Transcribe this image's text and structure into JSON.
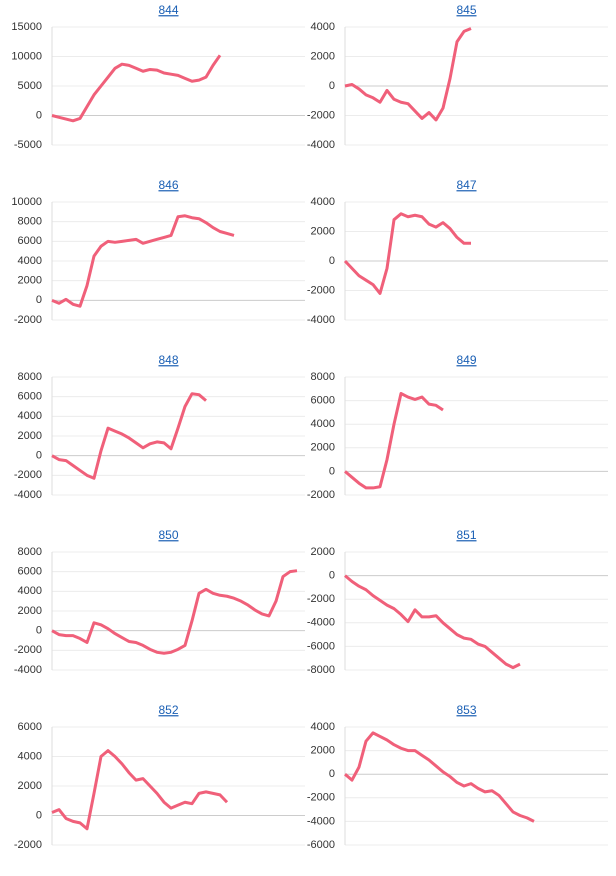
{
  "chart_data": [
    {
      "type": "line",
      "title": "844",
      "ylim": [
        -5000,
        15000
      ],
      "yticks": [
        -5000,
        0,
        5000,
        10000,
        15000
      ],
      "grid": true,
      "series": [
        {
          "color": "#f0607a",
          "values": [
            0,
            -300,
            -600,
            -900,
            -500,
            1500,
            3500,
            5000,
            6500,
            8000,
            8700,
            8500,
            8000,
            7500,
            7800,
            7700,
            7200,
            7000,
            6800,
            6300,
            5800,
            6000,
            6500,
            8500,
            10200
          ]
        }
      ]
    },
    {
      "type": "line",
      "title": "845",
      "ylim": [
        -4000,
        4000
      ],
      "yticks": [
        -4000,
        -2000,
        0,
        2000,
        4000
      ],
      "grid": true,
      "series": [
        {
          "color": "#f0607a",
          "values": [
            0,
            100,
            -200,
            -600,
            -800,
            -1100,
            -300,
            -900,
            -1100,
            -1200,
            -1700,
            -2200,
            -1800,
            -2300,
            -1500,
            500,
            3000,
            3700,
            3900
          ]
        }
      ]
    },
    {
      "type": "line",
      "title": "846",
      "ylim": [
        -2000,
        10000
      ],
      "yticks": [
        -2000,
        0,
        2000,
        4000,
        6000,
        8000,
        10000
      ],
      "grid": true,
      "series": [
        {
          "color": "#f0607a",
          "values": [
            0,
            -300,
            100,
            -400,
            -600,
            1500,
            4500,
            5500,
            6000,
            5900,
            6000,
            6100,
            6200,
            5800,
            6000,
            6200,
            6400,
            6600,
            8500,
            8600,
            8400,
            8300,
            7900,
            7400,
            7000,
            6800,
            6600
          ]
        }
      ]
    },
    {
      "type": "line",
      "title": "847",
      "ylim": [
        -4000,
        4000
      ],
      "yticks": [
        -4000,
        -2000,
        0,
        2000,
        4000
      ],
      "grid": true,
      "series": [
        {
          "color": "#f0607a",
          "values": [
            0,
            -500,
            -1000,
            -1300,
            -1600,
            -2200,
            -500,
            2800,
            3200,
            3000,
            3100,
            3000,
            2500,
            2300,
            2600,
            2200,
            1600,
            1200,
            1200
          ]
        }
      ]
    },
    {
      "type": "line",
      "title": "848",
      "ylim": [
        -4000,
        8000
      ],
      "yticks": [
        -4000,
        -2000,
        0,
        2000,
        4000,
        6000,
        8000
      ],
      "grid": true,
      "series": [
        {
          "color": "#f0607a",
          "values": [
            0,
            -400,
            -500,
            -1000,
            -1500,
            -2000,
            -2300,
            500,
            2800,
            2500,
            2200,
            1800,
            1300,
            800,
            1200,
            1400,
            1300,
            700,
            2800,
            5000,
            6300,
            6200,
            5600
          ]
        }
      ]
    },
    {
      "type": "line",
      "title": "849",
      "ylim": [
        -2000,
        8000
      ],
      "yticks": [
        -2000,
        0,
        2000,
        4000,
        6000,
        8000
      ],
      "grid": true,
      "series": [
        {
          "color": "#f0607a",
          "values": [
            0,
            -500,
            -1000,
            -1400,
            -1400,
            -1300,
            1000,
            4000,
            6600,
            6300,
            6100,
            6300,
            5700,
            5600,
            5200
          ]
        }
      ]
    },
    {
      "type": "line",
      "title": "850",
      "ylim": [
        -4000,
        8000
      ],
      "yticks": [
        -4000,
        -2000,
        0,
        2000,
        4000,
        6000,
        8000
      ],
      "grid": true,
      "series": [
        {
          "color": "#f0607a",
          "values": [
            0,
            -400,
            -500,
            -500,
            -800,
            -1200,
            800,
            600,
            200,
            -300,
            -700,
            -1100,
            -1200,
            -1500,
            -1900,
            -2200,
            -2300,
            -2200,
            -1900,
            -1500,
            1000,
            3800,
            4200,
            3800,
            3600,
            3500,
            3300,
            3000,
            2600,
            2100,
            1700,
            1500,
            3000,
            5500,
            6000,
            6100
          ]
        }
      ]
    },
    {
      "type": "line",
      "title": "851",
      "ylim": [
        -8000,
        2000
      ],
      "yticks": [
        -8000,
        -6000,
        -4000,
        -2000,
        0,
        2000
      ],
      "grid": true,
      "series": [
        {
          "color": "#f0607a",
          "values": [
            0,
            -500,
            -900,
            -1200,
            -1700,
            -2100,
            -2500,
            -2800,
            -3300,
            -3900,
            -2900,
            -3500,
            -3500,
            -3400,
            -4000,
            -4500,
            -5000,
            -5300,
            -5400,
            -5800,
            -6000,
            -6500,
            -7000,
            -7500,
            -7800,
            -7500
          ]
        }
      ]
    },
    {
      "type": "line",
      "title": "852",
      "ylim": [
        -2000,
        6000
      ],
      "yticks": [
        -2000,
        0,
        2000,
        4000,
        6000
      ],
      "grid": true,
      "series": [
        {
          "color": "#f0607a",
          "values": [
            200,
            400,
            -200,
            -400,
            -500,
            -900,
            1500,
            4000,
            4400,
            4000,
            3500,
            2900,
            2400,
            2500,
            2000,
            1500,
            900,
            500,
            700,
            900,
            800,
            1500,
            1600,
            1500,
            1400,
            900
          ]
        }
      ]
    },
    {
      "type": "line",
      "title": "853",
      "ylim": [
        -6000,
        4000
      ],
      "yticks": [
        -6000,
        -4000,
        -2000,
        0,
        2000,
        4000
      ],
      "grid": true,
      "series": [
        {
          "color": "#f0607a",
          "values": [
            0,
            -500,
            600,
            2800,
            3500,
            3200,
            2900,
            2500,
            2200,
            2000,
            2000,
            1600,
            1200,
            700,
            200,
            -200,
            -700,
            -1000,
            -800,
            -1200,
            -1500,
            -1400,
            -1800,
            -2500,
            -3200,
            -3500,
            -3700,
            -4000
          ]
        }
      ]
    }
  ]
}
